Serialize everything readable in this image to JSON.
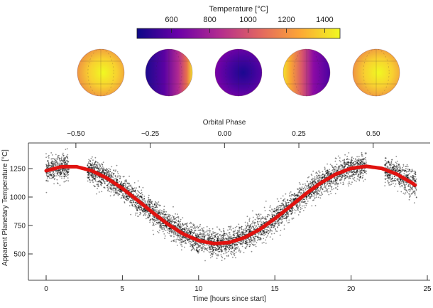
{
  "colorbar": {
    "label": "Temperature [°C]",
    "ticks": [
      "600",
      "800",
      "1000",
      "1200",
      "1400"
    ],
    "tick_values": [
      600,
      800,
      1000,
      1200,
      1400
    ],
    "range": [
      420,
      1480
    ],
    "colormap": "plasma",
    "colors": [
      "#0d0887",
      "#6a00a8",
      "#b12a90",
      "#e16462",
      "#fca636",
      "#f0f921"
    ]
  },
  "globes": [
    {
      "view": "dayside",
      "pattern": "hot-center"
    },
    {
      "view": "quadrature",
      "pattern": "hot-right"
    },
    {
      "view": "nightside",
      "pattern": "cold-center"
    },
    {
      "view": "quadrature",
      "pattern": "hot-left"
    },
    {
      "view": "dayside",
      "pattern": "hot-center"
    }
  ],
  "chart_data": {
    "type": "scatter",
    "xlabel": "Time [hours since start]",
    "ylabel": "Apparent Planetary Temperature [°C]",
    "top_xlabel": "Orbital Phase",
    "xlim": [
      -1.2,
      25.1
    ],
    "ylim": [
      270,
      1475
    ],
    "x_ticks": [
      "0",
      "5",
      "10",
      "15",
      "20",
      "25"
    ],
    "x_tick_values": [
      0,
      5,
      10,
      15,
      20,
      25
    ],
    "y_ticks": [
      "500",
      "750",
      "1000",
      "1250"
    ],
    "y_tick_values": [
      500,
      750,
      1000,
      1250
    ],
    "top_ticks": [
      "−0.50",
      "−0.25",
      "0.00",
      "0.25",
      "0.50"
    ],
    "top_tick_phase": [
      -0.5,
      -0.25,
      0,
      0.25,
      0.5
    ],
    "phase_zero_hours": 11.7,
    "period_hours": 19.5,
    "grid": false,
    "series": [
      {
        "kind": "scatter",
        "color": "#000000",
        "observed_ranges_hours": [
          [
            0,
            1.5
          ],
          [
            2.7,
            21.0
          ],
          [
            22.2,
            24.3
          ]
        ],
        "scatter_sigma": 55
      },
      {
        "kind": "line",
        "color": "#e0120f",
        "x": [
          0,
          1,
          2,
          3,
          4,
          5,
          6,
          7,
          8,
          9,
          10,
          11,
          12,
          13,
          14,
          15,
          16,
          17,
          18,
          19,
          20,
          21,
          22,
          23,
          24,
          24.3
        ],
        "y": [
          1231,
          1266,
          1266,
          1231,
          1165,
          1076,
          971,
          862,
          760,
          675,
          617,
          591,
          600,
          643,
          715,
          810,
          916,
          1025,
          1123,
          1201,
          1252,
          1270,
          1252,
          1201,
          1123,
          1095
        ]
      }
    ]
  }
}
